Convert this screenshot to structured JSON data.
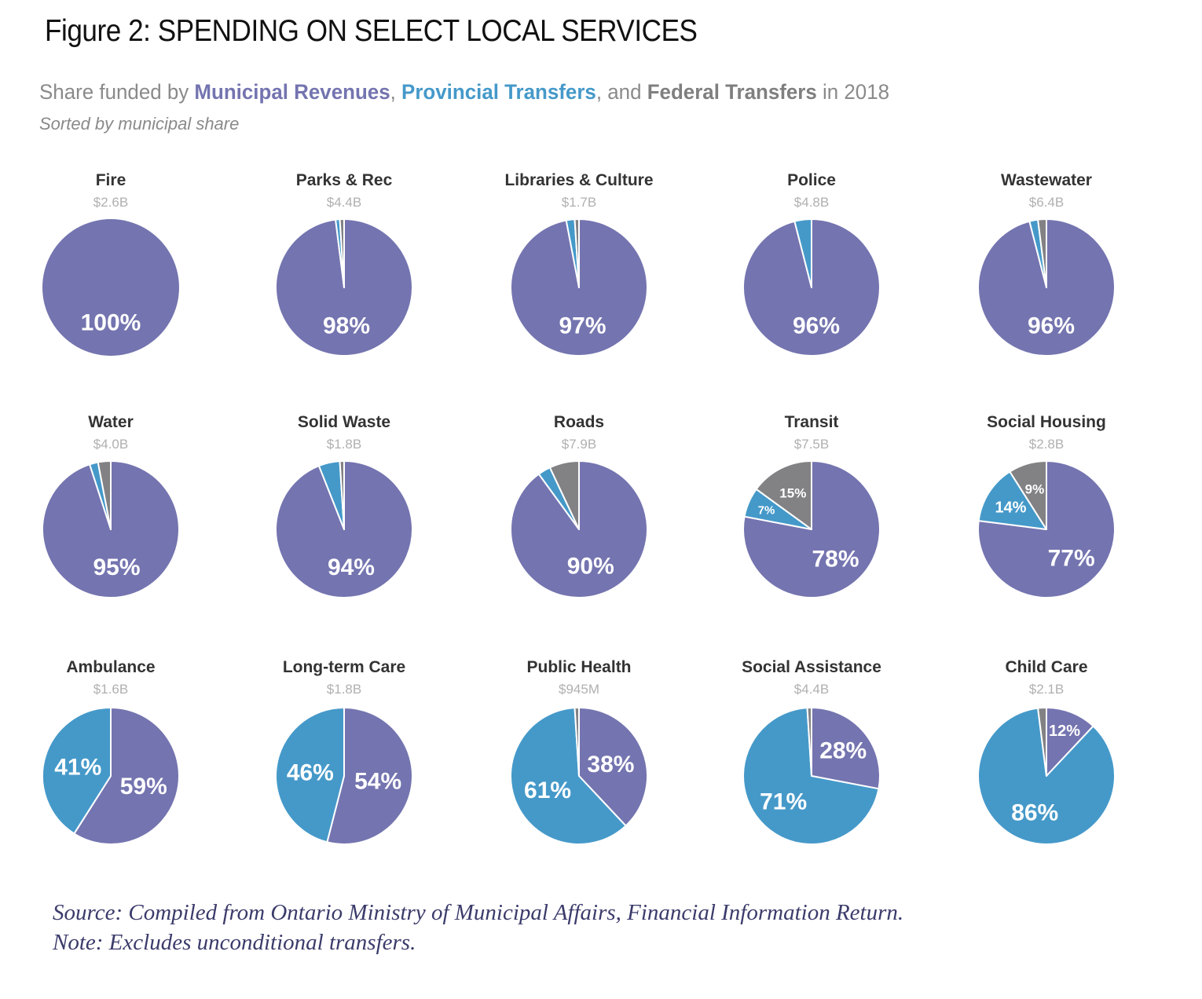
{
  "figure": {
    "title": "Figure 2: SPENDING ON SELECT LOCAL SERVICES",
    "subtitle": {
      "prefix": "Share funded by ",
      "municipal": "Municipal Revenues",
      "sep1": ", ",
      "provincial": "Provincial Transfers",
      "sep2": ", and ",
      "federal": "Federal Transfers",
      "suffix": " in 2018"
    },
    "sort_note": "Sorted by municipal share",
    "source": "Source: Compiled from Ontario Ministry of Municipal Affairs, Financial Information Return.",
    "note": "Note: Excludes unconditional transfers."
  },
  "colors": {
    "municipal": "#7474b0",
    "provincial": "#4599c9",
    "federal": "#828285"
  },
  "chart_data": {
    "type": "pie",
    "title": "SPENDING ON SELECT LOCAL SERVICES",
    "subtitle": "Share funded by Municipal Revenues, Provincial Transfers, and Federal Transfers in 2018",
    "series_names": [
      "Municipal Revenues",
      "Provincial Transfers",
      "Federal Transfers"
    ],
    "unit": "percent of spending",
    "grid": "5 columns x 3 rows, sorted by municipal share",
    "pies": [
      {
        "name": "Fire",
        "total": "$2.6B",
        "municipal": 100,
        "provincial": 0,
        "federal": 0,
        "labels": {
          "municipal": "100%"
        }
      },
      {
        "name": "Parks & Rec",
        "total": "$4.4B",
        "municipal": 98,
        "provincial": 1,
        "federal": 1,
        "labels": {
          "municipal": "98%"
        }
      },
      {
        "name": "Libraries & Culture",
        "total": "$1.7B",
        "municipal": 97,
        "provincial": 2,
        "federal": 1,
        "labels": {
          "municipal": "97%"
        }
      },
      {
        "name": "Police",
        "total": "$4.8B",
        "municipal": 96,
        "provincial": 4,
        "federal": 0,
        "labels": {
          "municipal": "96%"
        }
      },
      {
        "name": "Wastewater",
        "total": "$6.4B",
        "municipal": 96,
        "provincial": 2,
        "federal": 2,
        "labels": {
          "municipal": "96%"
        }
      },
      {
        "name": "Water",
        "total": "$4.0B",
        "municipal": 95,
        "provincial": 2,
        "federal": 3,
        "labels": {
          "municipal": "95%"
        }
      },
      {
        "name": "Solid Waste",
        "total": "$1.8B",
        "municipal": 94,
        "provincial": 5,
        "federal": 1,
        "labels": {
          "municipal": "94%"
        }
      },
      {
        "name": "Roads",
        "total": "$7.9B",
        "municipal": 90,
        "provincial": 3,
        "federal": 7,
        "labels": {
          "municipal": "90%"
        }
      },
      {
        "name": "Transit",
        "total": "$7.5B",
        "municipal": 78,
        "provincial": 7,
        "federal": 15,
        "labels": {
          "municipal": "78%",
          "provincial": "7%",
          "federal": "15%"
        }
      },
      {
        "name": "Social Housing",
        "total": "$2.8B",
        "municipal": 77,
        "provincial": 14,
        "federal": 9,
        "labels": {
          "municipal": "77%",
          "provincial": "14%",
          "federal": "9%"
        }
      },
      {
        "name": "Ambulance",
        "total": "$1.6B",
        "municipal": 59,
        "provincial": 41,
        "federal": 0,
        "labels": {
          "municipal": "59%",
          "provincial": "41%"
        }
      },
      {
        "name": "Long-term Care",
        "total": "$1.8B",
        "municipal": 54,
        "provincial": 46,
        "federal": 0,
        "labels": {
          "municipal": "54%",
          "provincial": "46%"
        }
      },
      {
        "name": "Public Health",
        "total": "$945M",
        "municipal": 38,
        "provincial": 61,
        "federal": 1,
        "labels": {
          "municipal": "38%",
          "provincial": "61%"
        }
      },
      {
        "name": "Social Assistance",
        "total": "$4.4B",
        "municipal": 28,
        "provincial": 71,
        "federal": 1,
        "labels": {
          "municipal": "28%",
          "provincial": "71%"
        }
      },
      {
        "name": "Child Care",
        "total": "$2.1B",
        "municipal": 12,
        "provincial": 86,
        "federal": 2,
        "labels": {
          "municipal": "12%",
          "provincial": "86%"
        }
      }
    ]
  }
}
